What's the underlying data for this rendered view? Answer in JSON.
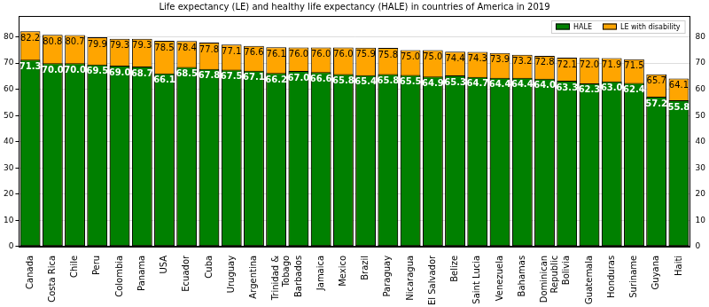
{
  "chart_data": {
    "type": "bar",
    "title": "Life expectancy (LE) and healthy life expectancy (HALE) in countries of America in 2019",
    "categories": [
      "Canada",
      "Costa Rica",
      "Chile",
      "Peru",
      "Colombia",
      "Panama",
      "USA",
      "Ecuador",
      "Cuba",
      "Uruguay",
      "Argentina",
      "Trinidad &\nTobago",
      "Barbados",
      "Jamaica",
      "Mexico",
      "Brazil",
      "Paraguay",
      "Nicaragua",
      "El Salvador",
      "Belize",
      "Saint Lucia",
      "Venezuela",
      "Bahamas",
      "Dominican\nRepublic",
      "Bolivia",
      "Guatemala",
      "Honduras",
      "Suriname",
      "Guyana",
      "Haiti"
    ],
    "series": [
      {
        "name": "HALE",
        "color": "#008000",
        "values": [
          71.3,
          70.0,
          70.0,
          69.5,
          69.0,
          68.7,
          66.1,
          68.5,
          67.8,
          67.5,
          67.1,
          66.2,
          67.0,
          66.6,
          65.8,
          65.4,
          65.8,
          65.5,
          64.9,
          65.3,
          64.7,
          64.4,
          64.4,
          64.0,
          63.3,
          62.3,
          63.0,
          62.4,
          57.2,
          55.8
        ],
        "value_labels": [
          "71.3",
          "70.0",
          "70.0",
          "69.5",
          "69.0",
          "68.7",
          "66.1",
          "68.5",
          "67.8",
          "67.5",
          "67.1",
          "66.2",
          "67.0",
          "66.6",
          "65.8",
          "65.4",
          "65.8",
          "65.5",
          "64.9",
          "65.3",
          "64.7",
          "64.4",
          "64.4",
          "64.0",
          "63.3",
          "62.3",
          "63.0",
          "62.4",
          "57.2",
          "55.8"
        ]
      },
      {
        "name": "LE with disability",
        "color": "#ffa500",
        "values": [
          82.2,
          80.8,
          80.7,
          79.9,
          79.3,
          79.3,
          78.5,
          78.4,
          77.8,
          77.1,
          76.6,
          76.1,
          76.0,
          76.0,
          76.0,
          75.9,
          75.8,
          75.0,
          75.0,
          74.4,
          74.3,
          73.9,
          73.2,
          72.8,
          72.1,
          72.0,
          71.9,
          71.5,
          65.7,
          64.1
        ],
        "value_labels": [
          "82.2",
          "80.8",
          "80.7",
          "79.9",
          "79.3",
          "79.3",
          "78.5",
          "78.4",
          "77.8",
          "77.1",
          "76.6",
          "76.1",
          "76.0",
          "76.0",
          "76.0",
          "75.9",
          "75.8",
          "75.0",
          "75.0",
          "74.4",
          "74.3",
          "73.9",
          "73.2",
          "72.8",
          "72.1",
          "72.0",
          "71.9",
          "71.5",
          "65.7",
          "64.1"
        ]
      }
    ],
    "ylim": [
      0,
      88
    ],
    "yticks": [
      0,
      10,
      20,
      30,
      40,
      50,
      60,
      70,
      80
    ],
    "y2lim": [
      0,
      88
    ],
    "y2ticks": [
      0,
      10,
      20,
      30,
      40,
      50,
      60,
      70,
      80
    ],
    "grid": true,
    "legend": "upper right",
    "data_labels": true
  }
}
